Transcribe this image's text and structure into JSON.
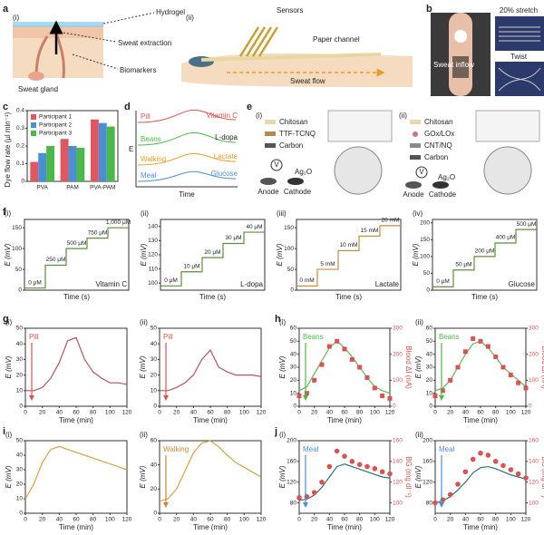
{
  "a": {
    "label": "a",
    "sub": [
      "(i)",
      "(ii)"
    ],
    "texts": [
      "Hydrogel",
      "Sweat extraction",
      "Biomarkers",
      "Sweat gland",
      "Sensors",
      "Paper channel",
      "Sweat flow"
    ]
  },
  "b": {
    "label": "b",
    "texts": [
      "20% stretch",
      "Twist",
      "Sweat inflow"
    ]
  },
  "c": {
    "label": "c",
    "type": "bar",
    "ylabel": "Dye flow rate (µl min⁻¹)",
    "categories": [
      "PVA",
      "PAM",
      "PVA-PAM"
    ],
    "series": [
      {
        "name": "Participant 1",
        "color": "#e0575f",
        "values": [
          0.11,
          0.24,
          0.35
        ]
      },
      {
        "name": "Participant 2",
        "color": "#4a8fd6",
        "values": [
          0.16,
          0.2,
          0.33
        ]
      },
      {
        "name": "Participant 3",
        "color": "#4cb847",
        "values": [
          0.2,
          0.19,
          0.31
        ]
      }
    ],
    "ylim": [
      0,
      0.4
    ],
    "yticks": [
      0,
      0.1,
      0.2,
      0.3,
      0.4
    ]
  },
  "d": {
    "label": "d",
    "ylabel": "E",
    "xlabel": "Time",
    "activities": [
      "Pill",
      "Beans",
      "Walking",
      "Meal"
    ],
    "analytes": [
      "Vitamin C",
      "L-dopa",
      "Lactate",
      "Glucose"
    ]
  },
  "e": {
    "label": "e",
    "panels": [
      {
        "sub": "(i)",
        "layers": [
          "Chitosan",
          "TTF-TCNQ",
          "Carbon"
        ],
        "electrodes": [
          "Anode",
          "Cathode"
        ],
        "meter": "V",
        "ref": "Ag₂O"
      },
      {
        "sub": "(ii)",
        "layers": [
          "Chitosan",
          "GOx/LOx",
          "CNT/NQ",
          "Carbon"
        ],
        "electrodes": [
          "Anode",
          "Cathode"
        ],
        "meter": "V",
        "ref": "Ag₂O"
      }
    ]
  },
  "f": {
    "label": "f",
    "plots": [
      {
        "sub": "(i)",
        "xlabel": "Time (s)",
        "ylabel": "E (mV)",
        "xlim": [
          0,
          500
        ],
        "ylim": [
          0,
          170
        ],
        "yticks": [
          0,
          50,
          100,
          150
        ],
        "x": [
          0,
          100,
          100,
          200,
          200,
          300,
          300,
          400,
          400,
          500
        ],
        "series": [
          {
            "color": "#5b8f3a",
            "kind": "line",
            "values": [
              5,
              5,
              60,
              60,
              100,
              100,
              125,
              125,
              150,
              150
            ]
          }
        ],
        "steps": [
          "0 μM",
          "250 μM",
          "500 μM",
          "750 μM",
          "1,000 μM"
        ],
        "analyte": "Vitamin C"
      },
      {
        "sub": "(ii)",
        "xlabel": "Time (s)",
        "ylabel": "E (mV)",
        "xlim": [
          0,
          500
        ],
        "ylim": [
          95,
          145
        ],
        "yticks": [
          100,
          110,
          120,
          130,
          140
        ],
        "x": [
          0,
          100,
          100,
          200,
          200,
          300,
          300,
          400,
          400,
          500
        ],
        "series": [
          {
            "color": "#5b8f3a",
            "kind": "line",
            "values": [
              98,
              98,
              108,
              108,
              118,
              118,
              128,
              128,
              136,
              136
            ]
          }
        ],
        "steps": [
          "0 μM",
          "10 μM",
          "20 μM",
          "30 μM",
          "40 μM"
        ],
        "analyte": "L-dopa"
      },
      {
        "sub": "(iii)",
        "xlabel": "Time (s)",
        "ylabel": "E (mV)",
        "xlim": [
          0,
          500
        ],
        "ylim": [
          0,
          170
        ],
        "yticks": [
          0,
          50,
          100,
          150
        ],
        "x": [
          0,
          100,
          100,
          200,
          200,
          300,
          300,
          400,
          400,
          500
        ],
        "series": [
          {
            "color": "#c98a3a",
            "kind": "line",
            "values": [
              10,
              10,
              50,
              50,
              95,
              95,
              130,
              130,
              155,
              155
            ]
          }
        ],
        "steps": [
          "0 mM",
          "5 mM",
          "10 mM",
          "15 mM",
          "20 mM"
        ],
        "analyte": "Lactate"
      },
      {
        "sub": "(iv)",
        "xlabel": "Time (s)",
        "ylabel": "E (mV)",
        "xlim": [
          0,
          500
        ],
        "ylim": [
          0,
          210
        ],
        "yticks": [
          0,
          50,
          100,
          150,
          200
        ],
        "x": [
          0,
          100,
          100,
          200,
          200,
          300,
          300,
          400,
          400,
          500
        ],
        "series": [
          {
            "color": "#5b8f3a",
            "kind": "line",
            "values": [
              10,
              10,
              60,
              60,
              100,
              100,
              140,
              140,
              180,
              180
            ]
          }
        ],
        "steps": [
          "0 μM",
          "50 μM",
          "200 μM",
          "400 μM",
          "500 μM"
        ],
        "analyte": "Glucose"
      }
    ]
  },
  "g": {
    "label": "g",
    "plots": [
      {
        "sub": "(i)",
        "xlabel": "Time (min)",
        "ylabel": "E (mV)",
        "xlim": [
          0,
          120
        ],
        "ylim": [
          0,
          50
        ],
        "xticks": [
          0,
          20,
          40,
          60,
          80,
          100,
          120
        ],
        "yticks": [
          0,
          10,
          20,
          30,
          40,
          50
        ],
        "annotation": "Pill",
        "annotation_color": "#d9534f",
        "x": [
          0,
          10,
          20,
          30,
          40,
          50,
          60,
          70,
          80,
          90,
          100,
          110,
          120
        ],
        "series": [
          {
            "color": "#b5545c",
            "kind": "line",
            "values": [
              10,
              10,
              12,
              18,
              28,
              42,
              44,
              30,
              22,
              18,
              15,
              15,
              14
            ]
          }
        ]
      },
      {
        "sub": "(ii)",
        "xlabel": "Time (min)",
        "ylabel": "E (mV)",
        "xlim": [
          0,
          120
        ],
        "ylim": [
          0,
          50
        ],
        "xticks": [
          0,
          20,
          40,
          60,
          80,
          100,
          120
        ],
        "yticks": [
          0,
          10,
          20,
          30,
          40,
          50
        ],
        "annotation": "Pill",
        "annotation_color": "#d9534f",
        "x": [
          0,
          10,
          20,
          30,
          40,
          50,
          60,
          70,
          80,
          90,
          100,
          110,
          120
        ],
        "series": [
          {
            "color": "#b5545c",
            "kind": "line",
            "values": [
              10,
              10,
              12,
              15,
              20,
              30,
              36,
              25,
              22,
              20,
              20,
              20,
              19
            ]
          }
        ]
      }
    ]
  },
  "h": {
    "label": "h",
    "plots": [
      {
        "sub": "(i)",
        "xlabel": "Time (min)",
        "ylabel": "E (mV)",
        "y2label": "Blood ΔI (nA)",
        "xlim": [
          0,
          120
        ],
        "ylim": [
          0,
          60
        ],
        "y2lim": [
          0,
          300
        ],
        "xticks": [
          0,
          20,
          40,
          60,
          80,
          100,
          120
        ],
        "yticks": [
          0,
          10,
          20,
          30,
          40,
          50,
          60
        ],
        "y2ticks": [
          0,
          100,
          200,
          300
        ],
        "annotation": "Beans",
        "annotation_color": "#4cb847",
        "x": [
          0,
          10,
          20,
          30,
          40,
          50,
          60,
          70,
          80,
          90,
          100,
          110,
          120
        ],
        "series": [
          {
            "color": "#5cb85c",
            "kind": "line",
            "values": [
              12,
              15,
              25,
              35,
              45,
              50,
              45,
              38,
              30,
              22,
              15,
              12,
              10
            ]
          },
          {
            "color": "#d9534f",
            "kind": "square",
            "axis": "y2",
            "values": [
              40,
              50,
              100,
              160,
              230,
              250,
              220,
              180,
              150,
              110,
              70,
              40,
              30
            ]
          }
        ]
      },
      {
        "sub": "(ii)",
        "xlabel": "Time (min)",
        "ylabel": "E (mV)",
        "y2label": "Blood ΔI (nA)",
        "xlim": [
          0,
          120
        ],
        "ylim": [
          0,
          60
        ],
        "y2lim": [
          0,
          300
        ],
        "xticks": [
          0,
          20,
          40,
          60,
          80,
          100,
          120
        ],
        "yticks": [
          0,
          10,
          20,
          30,
          40,
          50,
          60
        ],
        "y2ticks": [
          0,
          100,
          200,
          300
        ],
        "annotation": "Beans",
        "annotation_color": "#4cb847",
        "x": [
          0,
          10,
          20,
          30,
          40,
          50,
          60,
          70,
          80,
          90,
          100,
          110,
          120
        ],
        "series": [
          {
            "color": "#5cb85c",
            "kind": "line",
            "values": [
              12,
              14,
              20,
              30,
              40,
              48,
              50,
              45,
              38,
              30,
              25,
              20,
              15
            ]
          },
          {
            "color": "#d9534f",
            "kind": "square",
            "axis": "y2",
            "values": [
              40,
              60,
              100,
              150,
              210,
              260,
              250,
              230,
              190,
              150,
              120,
              90,
              70
            ]
          }
        ]
      }
    ]
  },
  "i": {
    "label": "i",
    "plots": [
      {
        "sub": "(i)",
        "xlabel": "Time (min)",
        "ylabel": "E (mV)",
        "xlim": [
          0,
          120
        ],
        "ylim": [
          0,
          50
        ],
        "xticks": [
          0,
          20,
          40,
          60,
          80,
          100,
          120
        ],
        "yticks": [
          0,
          10,
          20,
          30,
          40,
          50
        ],
        "x": [
          0,
          10,
          20,
          30,
          40,
          50,
          60,
          70,
          80,
          90,
          100,
          110,
          120
        ],
        "series": [
          {
            "color": "#d9a040",
            "kind": "line",
            "values": [
              10,
              20,
              35,
              44,
              46,
              44,
              42,
              40,
              38,
              36,
              34,
              32,
              30
            ]
          }
        ]
      },
      {
        "sub": "(ii)",
        "xlabel": "Time (min)",
        "ylabel": "E (mV)",
        "xlim": [
          0,
          120
        ],
        "ylim": [
          0,
          60
        ],
        "xticks": [
          0,
          20,
          40,
          60,
          80,
          100,
          120
        ],
        "yticks": [
          0,
          20,
          40,
          60
        ],
        "annotation": "Walking",
        "annotation_color": "#c98a3a",
        "x": [
          0,
          10,
          20,
          30,
          40,
          50,
          60,
          70,
          80,
          90,
          100,
          110,
          120
        ],
        "series": [
          {
            "color": "#d9a040",
            "kind": "line",
            "values": [
              10,
              12,
              20,
              35,
              50,
              58,
              60,
              55,
              48,
              42,
              38,
              34,
              30
            ]
          }
        ]
      }
    ]
  },
  "j": {
    "label": "j",
    "plots": [
      {
        "sub": "(i)",
        "xlabel": "Time (min)",
        "ylabel": "E (mV)",
        "y2label": "BG (mg dl⁻¹)",
        "xlim": [
          0,
          120
        ],
        "ylim": [
          60,
          200
        ],
        "y2lim": [
          90,
          160
        ],
        "xticks": [
          0,
          20,
          40,
          60,
          80,
          100,
          120
        ],
        "yticks": [
          80,
          120,
          160,
          200
        ],
        "y2ticks": [
          100,
          120,
          140,
          160
        ],
        "annotation": "Meal",
        "annotation_color": "#4a8fd6",
        "x": [
          0,
          10,
          20,
          30,
          40,
          50,
          60,
          70,
          80,
          90,
          100,
          110,
          120
        ],
        "series": [
          {
            "color": "#2f6f7a",
            "kind": "line",
            "values": [
              85,
              87,
              95,
              110,
              130,
              150,
              155,
              150,
              145,
              140,
              135,
              130,
              128
            ]
          },
          {
            "color": "#d9534f",
            "kind": "circle",
            "axis": "y2",
            "values": [
              105,
              106,
              110,
              120,
              135,
              150,
              145,
              140,
              137,
              135,
              133,
              130,
              128
            ]
          }
        ]
      },
      {
        "sub": "(ii)",
        "xlabel": "Time (min)",
        "ylabel": "E (mV)",
        "y2label": "BG (mg dl⁻¹)",
        "xlim": [
          0,
          120
        ],
        "ylim": [
          60,
          200
        ],
        "y2lim": [
          90,
          160
        ],
        "xticks": [
          0,
          20,
          40,
          60,
          80,
          100,
          120
        ],
        "yticks": [
          80,
          120,
          160,
          200
        ],
        "y2ticks": [
          100,
          120,
          140,
          160
        ],
        "annotation": "Meal",
        "annotation_color": "#4a8fd6",
        "x": [
          0,
          10,
          20,
          30,
          40,
          50,
          60,
          70,
          80,
          90,
          100,
          110,
          120
        ],
        "series": [
          {
            "color": "#2f6f7a",
            "kind": "line",
            "values": [
              80,
              84,
              92,
              105,
              120,
              138,
              148,
              150,
              146,
              140,
              134,
              130,
              126
            ]
          },
          {
            "color": "#d9534f",
            "kind": "circle",
            "axis": "y2",
            "values": [
              100,
              103,
              108,
              118,
              130,
              142,
              148,
              146,
              140,
              136,
              132,
              128,
              124
            ]
          }
        ]
      }
    ]
  }
}
